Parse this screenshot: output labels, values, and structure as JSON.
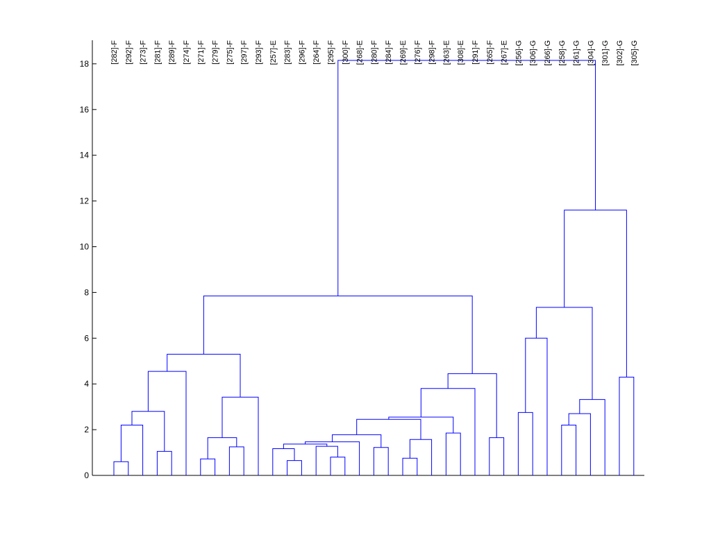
{
  "chart_data": {
    "type": "dendrogram",
    "title": "",
    "xlabel": "",
    "ylabel": "",
    "ylim": [
      0,
      19
    ],
    "yticks": [
      0,
      2,
      4,
      6,
      8,
      10,
      12,
      14,
      16,
      18
    ],
    "grid": false,
    "link_color": "#0000ff",
    "leaves": [
      "[282]-F",
      "[292]-F",
      "[273]-F",
      "[281]-F",
      "[289]-F",
      "[274]-F",
      "[271]-F",
      "[279]-F",
      "[275]-F",
      "[297]-F",
      "[293]-F",
      "[257]-E",
      "[283]-F",
      "[296]-F",
      "[264]-F",
      "[295]-F",
      "[300]-F",
      "[268]-E",
      "[280]-F",
      "[284]-F",
      "[269]-E",
      "[276]-F",
      "[298]-F",
      "[263]-E",
      "[308]-E",
      "[291]-F",
      "[265]-F",
      "[267]-E",
      "[256]-G",
      "[306]-G",
      "[266]-G",
      "[258]-G",
      "[261]-G",
      "[304]-G",
      "[301]-G",
      "[302]-G",
      "[305]-G"
    ],
    "merges": [
      {
        "id": "c1",
        "left": "[282]-F",
        "right": "[292]-F",
        "height": 0.6
      },
      {
        "id": "c2",
        "left": "c1",
        "right": "[273]-F",
        "height": 2.2
      },
      {
        "id": "c3",
        "left": "[281]-F",
        "right": "[289]-F",
        "height": 1.05
      },
      {
        "id": "c4",
        "left": "c2",
        "right": "c3",
        "height": 2.8
      },
      {
        "id": "c5",
        "left": "c4",
        "right": "[274]-F",
        "height": 4.55
      },
      {
        "id": "c6",
        "left": "[271]-F",
        "right": "[279]-F",
        "height": 0.72
      },
      {
        "id": "c7",
        "left": "[275]-F",
        "right": "[297]-F",
        "height": 1.25
      },
      {
        "id": "c8",
        "left": "c6",
        "right": "c7",
        "height": 1.65
      },
      {
        "id": "c9",
        "left": "c8",
        "right": "[293]-F",
        "height": 3.42
      },
      {
        "id": "c10",
        "left": "c5",
        "right": "c9",
        "height": 5.3
      },
      {
        "id": "c11",
        "left": "[283]-F",
        "right": "[296]-F",
        "height": 0.65
      },
      {
        "id": "c12",
        "left": "[257]-E",
        "right": "c11",
        "height": 1.17
      },
      {
        "id": "c13",
        "left": "[295]-F",
        "right": "[300]-F",
        "height": 0.8
      },
      {
        "id": "c14",
        "left": "[264]-F",
        "right": "c13",
        "height": 1.27
      },
      {
        "id": "c15",
        "left": "c12",
        "right": "c14",
        "height": 1.37
      },
      {
        "id": "c16",
        "left": "c15",
        "right": "[268]-E",
        "height": 1.47
      },
      {
        "id": "c17",
        "left": "[280]-F",
        "right": "[284]-F",
        "height": 1.22
      },
      {
        "id": "c18",
        "left": "c16",
        "right": "c17",
        "height": 1.78
      },
      {
        "id": "c19",
        "left": "[269]-E",
        "right": "[276]-F",
        "height": 0.75
      },
      {
        "id": "c20",
        "left": "c19",
        "right": "[298]-F",
        "height": 1.57
      },
      {
        "id": "c21",
        "left": "c18",
        "right": "c20",
        "height": 2.45
      },
      {
        "id": "c22",
        "left": "[263]-E",
        "right": "[308]-E",
        "height": 1.85
      },
      {
        "id": "c23",
        "left": "c21",
        "right": "c22",
        "height": 2.55
      },
      {
        "id": "c24",
        "left": "c23",
        "right": "[291]-F",
        "height": 3.8
      },
      {
        "id": "c25",
        "left": "[265]-F",
        "right": "[267]-E",
        "height": 1.65
      },
      {
        "id": "c26",
        "left": "c24",
        "right": "c25",
        "height": 4.45
      },
      {
        "id": "c27",
        "left": "c10",
        "right": "c26",
        "height": 7.85
      },
      {
        "id": "c28",
        "left": "[256]-G",
        "right": "[306]-G",
        "height": 2.75
      },
      {
        "id": "c29",
        "left": "c28",
        "right": "[266]-G",
        "height": 6.0
      },
      {
        "id": "c30",
        "left": "[258]-G",
        "right": "[261]-G",
        "height": 2.2
      },
      {
        "id": "c31",
        "left": "c30",
        "right": "[304]-G",
        "height": 2.7
      },
      {
        "id": "c32",
        "left": "c31",
        "right": "[301]-G",
        "height": 3.32
      },
      {
        "id": "c33",
        "left": "c29",
        "right": "c32",
        "height": 7.35
      },
      {
        "id": "c34",
        "left": "[302]-G",
        "right": "[305]-G",
        "height": 4.3
      },
      {
        "id": "c35",
        "left": "c33",
        "right": "c34",
        "height": 11.6
      },
      {
        "id": "c36",
        "left": "c27",
        "right": "c35",
        "height": 18.15
      }
    ]
  }
}
